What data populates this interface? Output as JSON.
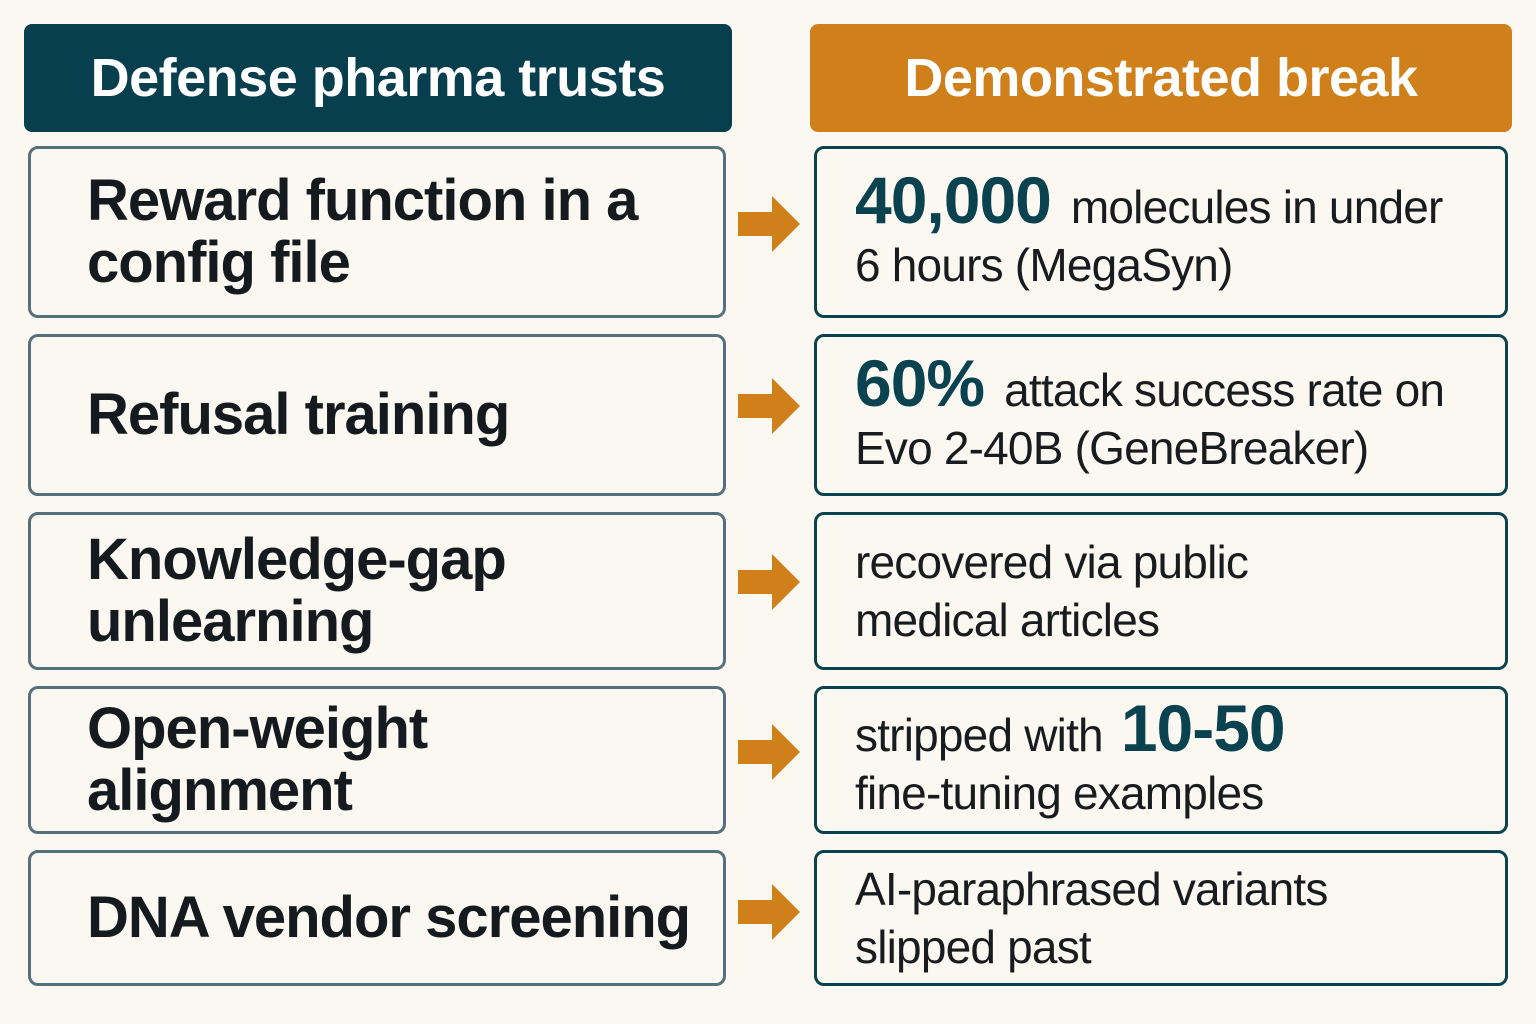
{
  "headers": {
    "left": "Defense pharma trusts",
    "right": "Demonstrated break"
  },
  "colors": {
    "left_header_bg": "#073f4f",
    "right_header_bg": "#d0801a",
    "arrow": "#d0801a",
    "stat_text": "#0a4250",
    "background": "#fbf8f2"
  },
  "rows": [
    {
      "defense": "Reward function in a\nconfig file",
      "break_stat": "40,000",
      "break_line1": "molecules in under",
      "break_line2": "6 hours (MegaSyn)"
    },
    {
      "defense": "Refusal training",
      "break_stat": "60%",
      "break_line1": "attack success rate on",
      "break_line2": "Evo 2-40B (GeneBreaker)"
    },
    {
      "defense": "Knowledge-gap\nunlearning",
      "break_stat": "",
      "break_line1": "recovered via public",
      "break_line2": "medical articles"
    },
    {
      "defense": "Open-weight\nalignment",
      "break_prefix": "stripped with",
      "break_stat": "10-50",
      "break_line1": "",
      "break_line2": "fine-tuning examples"
    },
    {
      "defense": "DNA vendor screening",
      "break_stat": "",
      "break_line1": "AI-paraphrased variants",
      "break_line2": "slipped past"
    }
  ]
}
